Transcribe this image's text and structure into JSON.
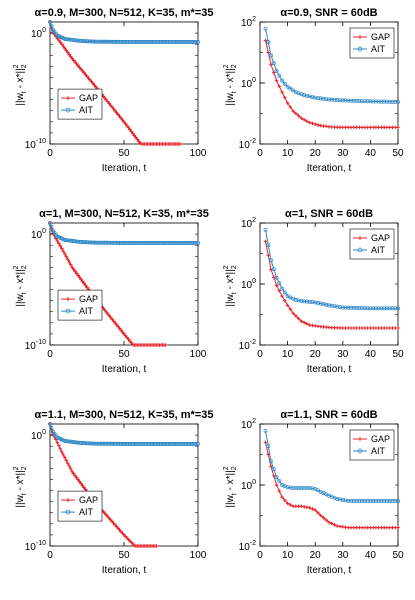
{
  "figure": {
    "legend_labels": [
      "GAP",
      "AIT"
    ],
    "series_colors": {
      "GAP": "#e8262b",
      "AIT": "#2f88c8"
    },
    "ylabel_text": "||w_t - x*||_2^2"
  },
  "chart_data": [
    {
      "type": "line",
      "title": "α=0.9, M=300, N=512, K=35, m*=35",
      "xlabel": "Iteration, t",
      "ylabel": "||w_t - x*||_2^2",
      "y_scale": "log",
      "xlim": [
        0,
        100
      ],
      "ylim_exp": [
        -10,
        1
      ],
      "xticks": [
        0,
        50,
        100
      ],
      "yticks_exp": [
        -10,
        0
      ],
      "legend": "center-left",
      "series": [
        {
          "name": "GAP",
          "x_end": 88,
          "points": [
            [
              0,
              10
            ],
            [
              1,
              3
            ],
            [
              2,
              1.2
            ],
            [
              4,
              0.5
            ],
            [
              8,
              0.1
            ],
            [
              15,
              0.005
            ],
            [
              30,
              2e-05
            ],
            [
              50,
              1e-08
            ],
            [
              70,
              3e-12
            ],
            [
              88,
              3e-15
            ]
          ]
        },
        {
          "name": "AIT",
          "x_end": 100,
          "points": [
            [
              0,
              10
            ],
            [
              2,
              2
            ],
            [
              5,
              0.6
            ],
            [
              10,
              0.3
            ],
            [
              20,
              0.2
            ],
            [
              30,
              0.17
            ],
            [
              50,
              0.16
            ],
            [
              100,
              0.16
            ]
          ]
        }
      ]
    },
    {
      "type": "line",
      "title": "α=0.9, SNR = 60dB",
      "xlabel": "Iteration, t",
      "ylabel": "||w_t - x*||_2^2",
      "y_scale": "log",
      "xlim": [
        0,
        50
      ],
      "ylim_exp": [
        -2,
        2
      ],
      "xticks": [
        0,
        10,
        20,
        30,
        40,
        50
      ],
      "yticks_exp": [
        -2,
        0,
        2
      ],
      "legend": "top-right",
      "series": [
        {
          "name": "GAP",
          "x_start": 2,
          "x_end": 50,
          "points": [
            [
              2,
              25
            ],
            [
              4,
              4
            ],
            [
              6,
              1.2
            ],
            [
              8,
              0.5
            ],
            [
              10,
              0.22
            ],
            [
              12,
              0.12
            ],
            [
              15,
              0.07
            ],
            [
              18,
              0.05
            ],
            [
              22,
              0.04
            ],
            [
              26,
              0.036
            ],
            [
              30,
              0.035
            ],
            [
              50,
              0.035
            ]
          ]
        },
        {
          "name": "AIT",
          "x_start": 2,
          "x_end": 50,
          "points": [
            [
              2,
              60
            ],
            [
              4,
              8
            ],
            [
              6,
              2.5
            ],
            [
              8,
              1.2
            ],
            [
              10,
              0.75
            ],
            [
              13,
              0.5
            ],
            [
              16,
              0.4
            ],
            [
              20,
              0.33
            ],
            [
              25,
              0.29
            ],
            [
              30,
              0.27
            ],
            [
              40,
              0.25
            ],
            [
              50,
              0.24
            ]
          ]
        }
      ]
    },
    {
      "type": "line",
      "title": "α=1, M=300, N=512, K=35, m*=35",
      "xlabel": "Iteration, t",
      "ylabel": "||w_t - x*||_2^2",
      "y_scale": "log",
      "xlim": [
        0,
        100
      ],
      "ylim_exp": [
        -10,
        1
      ],
      "xticks": [
        0,
        50,
        100
      ],
      "yticks_exp": [
        -10,
        0
      ],
      "legend": "center-left",
      "series": [
        {
          "name": "GAP",
          "x_end": 78,
          "points": [
            [
              0,
              10
            ],
            [
              1,
              3
            ],
            [
              2,
              1.2
            ],
            [
              4,
              0.4
            ],
            [
              8,
              0.05
            ],
            [
              15,
              0.001
            ],
            [
              30,
              2e-06
            ],
            [
              50,
              1e-09
            ],
            [
              78,
              3e-14
            ]
          ]
        },
        {
          "name": "AIT",
          "x_end": 100,
          "points": [
            [
              0,
              10
            ],
            [
              2,
              2
            ],
            [
              5,
              0.6
            ],
            [
              10,
              0.3
            ],
            [
              20,
              0.2
            ],
            [
              30,
              0.17
            ],
            [
              50,
              0.16
            ],
            [
              100,
              0.16
            ]
          ]
        }
      ]
    },
    {
      "type": "line",
      "title": "α=1, SNR = 60dB",
      "xlabel": "Iteration, t",
      "ylabel": "||w_t - x*||_2^2",
      "y_scale": "log",
      "xlim": [
        0,
        50
      ],
      "ylim_exp": [
        -2,
        2
      ],
      "xticks": [
        0,
        10,
        20,
        30,
        40,
        50
      ],
      "yticks_exp": [
        -2,
        0,
        2
      ],
      "legend": "top-right",
      "series": [
        {
          "name": "GAP",
          "x_start": 2,
          "x_end": 50,
          "points": [
            [
              2,
              25
            ],
            [
              4,
              3
            ],
            [
              6,
              0.9
            ],
            [
              8,
              0.4
            ],
            [
              10,
              0.2
            ],
            [
              12,
              0.11
            ],
            [
              15,
              0.06
            ],
            [
              18,
              0.045
            ],
            [
              22,
              0.04
            ],
            [
              26,
              0.037
            ],
            [
              30,
              0.036
            ],
            [
              50,
              0.036
            ]
          ]
        },
        {
          "name": "AIT",
          "x_start": 2,
          "x_end": 50,
          "points": [
            [
              2,
              60
            ],
            [
              4,
              6
            ],
            [
              6,
              1.6
            ],
            [
              8,
              0.7
            ],
            [
              10,
              0.4
            ],
            [
              13,
              0.3
            ],
            [
              16,
              0.27
            ],
            [
              20,
              0.25
            ],
            [
              25,
              0.2
            ],
            [
              30,
              0.17
            ],
            [
              40,
              0.16
            ],
            [
              50,
              0.16
            ]
          ]
        }
      ]
    },
    {
      "type": "line",
      "title": "α=1.1, M=300, N=512, K=35, m*=35",
      "xlabel": "Iteration, t",
      "ylabel": "||w_t - x*||_2^2",
      "y_scale": "log",
      "xlim": [
        0,
        100
      ],
      "ylim_exp": [
        -10,
        1
      ],
      "xticks": [
        0,
        50,
        100
      ],
      "yticks_exp": [
        -10,
        0
      ],
      "legend": "center-left",
      "series": [
        {
          "name": "GAP",
          "x_end": 72,
          "points": [
            [
              0,
              10
            ],
            [
              1,
              3
            ],
            [
              2,
              1.2
            ],
            [
              4,
              0.4
            ],
            [
              8,
              0.03
            ],
            [
              15,
              0.0005
            ],
            [
              30,
              1e-06
            ],
            [
              50,
              1e-09
            ],
            [
              72,
              1e-12
            ]
          ]
        },
        {
          "name": "AIT",
          "x_end": 100,
          "points": [
            [
              0,
              10
            ],
            [
              2,
              2
            ],
            [
              5,
              0.6
            ],
            [
              10,
              0.3
            ],
            [
              20,
              0.2
            ],
            [
              30,
              0.17
            ],
            [
              50,
              0.16
            ],
            [
              100,
              0.16
            ]
          ]
        }
      ]
    },
    {
      "type": "line",
      "title": "α=1.1, SNR = 60dB",
      "xlabel": "Iteration, t",
      "ylabel": "||w_t - x*||_2^2",
      "y_scale": "log",
      "xlim": [
        0,
        50
      ],
      "ylim_exp": [
        -2,
        2
      ],
      "xticks": [
        0,
        10,
        20,
        30,
        40,
        50
      ],
      "yticks_exp": [
        -2,
        0,
        2
      ],
      "legend": "top-right",
      "series": [
        {
          "name": "GAP",
          "x_start": 2,
          "x_end": 50,
          "points": [
            [
              2,
              25
            ],
            [
              4,
              4
            ],
            [
              6,
              1.0
            ],
            [
              8,
              0.4
            ],
            [
              10,
              0.25
            ],
            [
              12,
              0.2
            ],
            [
              15,
              0.2
            ],
            [
              18,
              0.18
            ],
            [
              20,
              0.15
            ],
            [
              22,
              0.1
            ],
            [
              25,
              0.06
            ],
            [
              28,
              0.045
            ],
            [
              32,
              0.04
            ],
            [
              50,
              0.04
            ]
          ]
        },
        {
          "name": "AIT",
          "x_start": 2,
          "x_end": 50,
          "points": [
            [
              2,
              60
            ],
            [
              4,
              6
            ],
            [
              6,
              1.8
            ],
            [
              8,
              1.0
            ],
            [
              10,
              0.85
            ],
            [
              12,
              0.8
            ],
            [
              15,
              0.8
            ],
            [
              18,
              0.8
            ],
            [
              20,
              0.75
            ],
            [
              22,
              0.6
            ],
            [
              25,
              0.45
            ],
            [
              28,
              0.35
            ],
            [
              32,
              0.3
            ],
            [
              40,
              0.3
            ],
            [
              50,
              0.3
            ]
          ]
        }
      ]
    }
  ]
}
